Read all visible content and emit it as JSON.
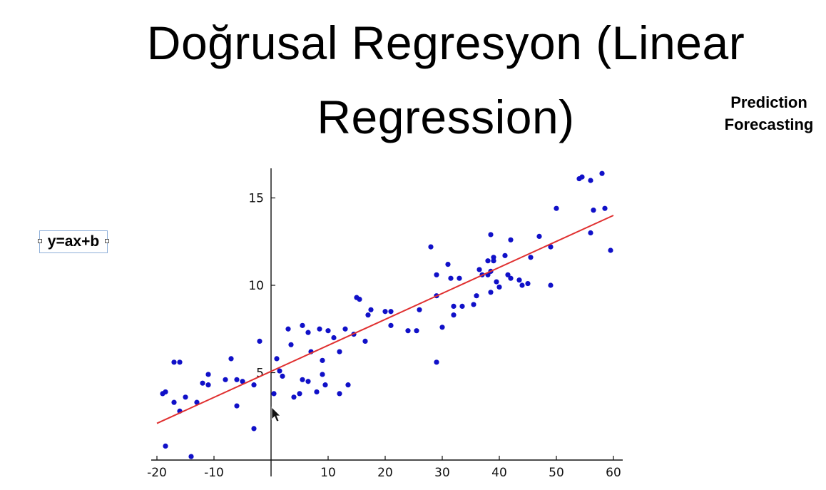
{
  "slide": {
    "title_line1": "Doğrusal Regresyon (Linear",
    "title_line2": "Regression)",
    "side_note": [
      "Prediction",
      "Forecasting"
    ],
    "equation_label": "y=ax+b"
  },
  "colors": {
    "points": "#1010c8",
    "fit_line": "#e03030",
    "axes": "#111111"
  },
  "chart_data": {
    "type": "scatter",
    "title": "",
    "xlabel": "",
    "ylabel": "",
    "xlim": [
      -21,
      61.5
    ],
    "ylim": [
      0,
      16.7
    ],
    "x_ticks": [
      -20,
      -10,
      10,
      20,
      30,
      40,
      50,
      60
    ],
    "x_tick_labels": [
      "-20",
      "-10",
      "10",
      "20",
      "30",
      "40",
      "50",
      "60"
    ],
    "y_ticks": [
      5,
      10,
      15
    ],
    "y_tick_labels": [
      "5",
      "10",
      "15"
    ],
    "grid": false,
    "legend": "none",
    "fit_line": {
      "x": [
        -20,
        60
      ],
      "y": [
        2.1,
        14.0
      ]
    },
    "points": [
      [
        -19,
        3.8
      ],
      [
        -18.5,
        3.9
      ],
      [
        -17,
        5.6
      ],
      [
        -16,
        5.6
      ],
      [
        -17,
        3.3
      ],
      [
        -15,
        3.6
      ],
      [
        -16,
        2.8
      ],
      [
        -12,
        4.4
      ],
      [
        -11,
        4.9
      ],
      [
        -13,
        3.3
      ],
      [
        -11,
        4.3
      ],
      [
        -8,
        4.6
      ],
      [
        -7,
        5.8
      ],
      [
        -6,
        4.6
      ],
      [
        -6,
        3.1
      ],
      [
        -5,
        4.5
      ],
      [
        -3,
        1.8
      ],
      [
        -3,
        4.3
      ],
      [
        -2,
        6.8
      ],
      [
        0.5,
        3.8
      ],
      [
        1,
        5.8
      ],
      [
        1.5,
        5.1
      ],
      [
        2,
        4.8
      ],
      [
        3,
        7.5
      ],
      [
        3.5,
        6.6
      ],
      [
        4,
        3.6
      ],
      [
        5,
        3.8
      ],
      [
        5.5,
        4.6
      ],
      [
        5.5,
        7.7
      ],
      [
        6.5,
        4.5
      ],
      [
        6.5,
        7.3
      ],
      [
        7,
        6.2
      ],
      [
        8,
        3.9
      ],
      [
        8.5,
        7.5
      ],
      [
        9,
        5.7
      ],
      [
        9,
        4.9
      ],
      [
        9.5,
        4.3
      ],
      [
        10,
        7.4
      ],
      [
        11,
        7.0
      ],
      [
        12,
        6.2
      ],
      [
        12,
        3.8
      ],
      [
        13,
        7.5
      ],
      [
        13.5,
        4.3
      ],
      [
        14.5,
        7.2
      ],
      [
        15,
        9.3
      ],
      [
        15.5,
        9.2
      ],
      [
        16.5,
        6.8
      ],
      [
        17,
        8.3
      ],
      [
        17.5,
        8.6
      ],
      [
        20,
        8.5
      ],
      [
        21,
        8.5
      ],
      [
        21,
        7.7
      ],
      [
        24,
        7.4
      ],
      [
        25.5,
        7.4
      ],
      [
        26,
        8.6
      ],
      [
        28,
        12.2
      ],
      [
        29,
        10.6
      ],
      [
        29,
        9.4
      ],
      [
        29,
        5.6
      ],
      [
        30,
        7.6
      ],
      [
        31,
        11.2
      ],
      [
        31.5,
        10.4
      ],
      [
        32,
        8.8
      ],
      [
        32,
        8.3
      ],
      [
        33,
        10.4
      ],
      [
        33.5,
        8.8
      ],
      [
        35.5,
        8.9
      ],
      [
        36,
        9.4
      ],
      [
        36.5,
        10.9
      ],
      [
        37,
        10.6
      ],
      [
        38,
        11.4
      ],
      [
        38,
        10.6
      ],
      [
        38.5,
        10.8
      ],
      [
        38.5,
        12.9
      ],
      [
        38.5,
        9.6
      ],
      [
        39,
        11.6
      ],
      [
        39,
        11.4
      ],
      [
        39.5,
        10.2
      ],
      [
        40,
        9.9
      ],
      [
        41,
        11.7
      ],
      [
        41.5,
        10.6
      ],
      [
        42,
        10.4
      ],
      [
        42,
        12.6
      ],
      [
        43.5,
        10.3
      ],
      [
        44,
        10.0
      ],
      [
        45,
        10.1
      ],
      [
        45.5,
        11.6
      ],
      [
        47,
        12.8
      ],
      [
        49,
        12.2
      ],
      [
        49,
        10.0
      ],
      [
        50,
        14.4
      ],
      [
        54,
        16.1
      ],
      [
        54.5,
        16.2
      ],
      [
        56,
        16.0
      ],
      [
        56.5,
        14.3
      ],
      [
        56,
        13.0
      ],
      [
        58,
        16.4
      ],
      [
        58.5,
        14.4
      ],
      [
        59.5,
        12.0
      ],
      [
        -14,
        0.2
      ],
      [
        -18.5,
        0.8
      ]
    ]
  }
}
